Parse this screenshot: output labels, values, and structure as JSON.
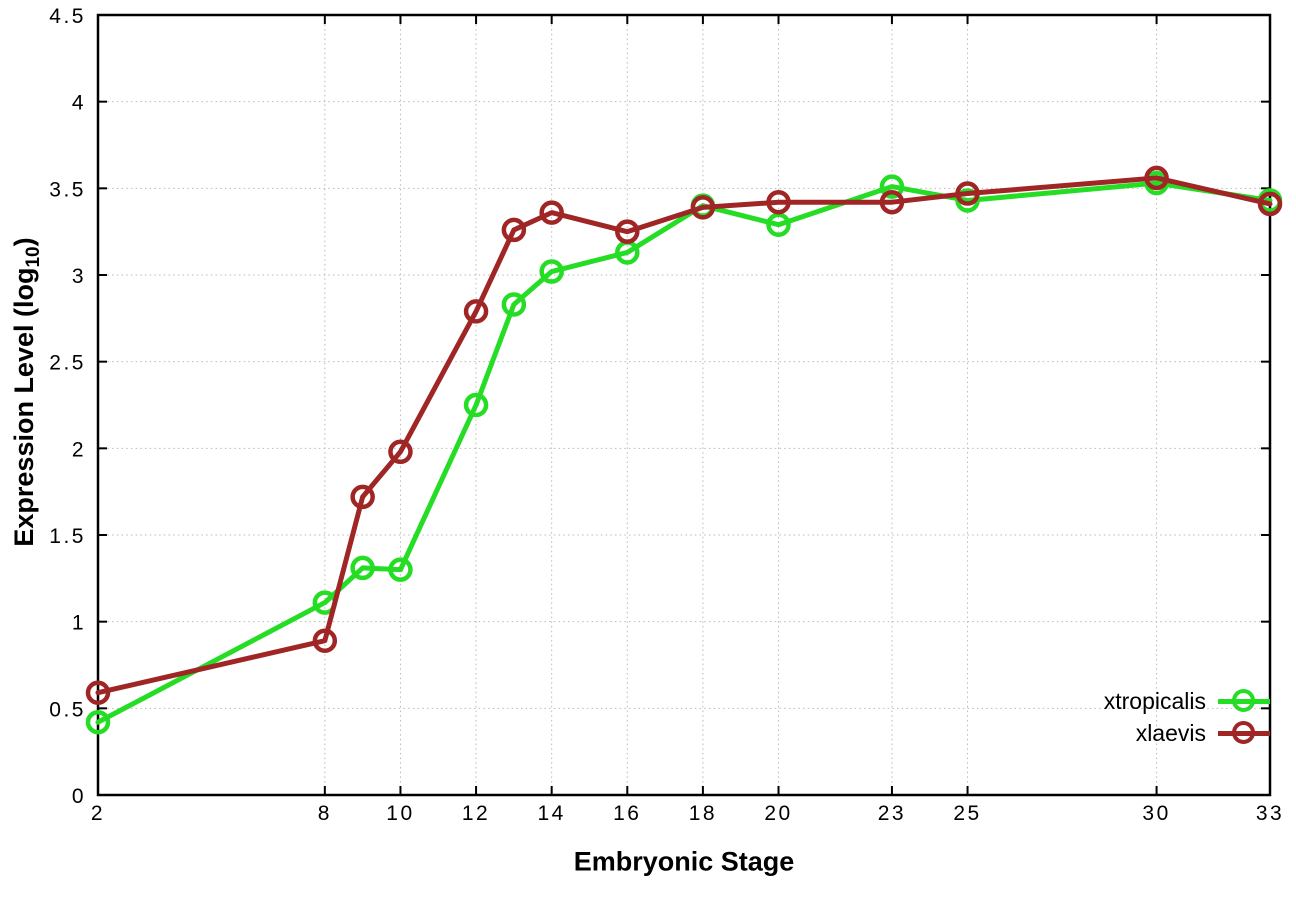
{
  "chart_data": {
    "type": "line",
    "title": "",
    "xlabel": "Embryonic Stage",
    "ylabel_main": "Expression Level (log",
    "ylabel_sub": "10",
    "ylabel_close": ")",
    "x": [
      2,
      8,
      9,
      10,
      12,
      13,
      14,
      16,
      18,
      20,
      23,
      25,
      30,
      33
    ],
    "series": [
      {
        "name": "xtropicalis",
        "color": "#26dd26",
        "values": [
          0.42,
          1.11,
          1.31,
          1.3,
          2.25,
          2.83,
          3.02,
          3.13,
          3.4,
          3.29,
          3.51,
          3.43,
          3.53,
          3.43
        ]
      },
      {
        "name": "xlaevis",
        "color": "#a02626",
        "values": [
          0.59,
          0.89,
          1.72,
          1.98,
          2.79,
          3.26,
          3.36,
          3.25,
          3.39,
          3.42,
          3.42,
          3.47,
          3.56,
          3.41
        ]
      }
    ],
    "xlim": [
      2,
      33
    ],
    "ylim": [
      0,
      4.5
    ],
    "x_ticks": [
      2,
      8,
      10,
      12,
      14,
      16,
      18,
      20,
      23,
      25,
      30,
      33
    ],
    "x_tick_labels": [
      "2",
      "8",
      "10",
      "12",
      "14",
      "16",
      "18",
      "20",
      "23",
      "25",
      "30",
      "33"
    ],
    "y_ticks": [
      0,
      0.5,
      1,
      1.5,
      2,
      2.5,
      3,
      3.5,
      4,
      4.5
    ],
    "y_tick_labels": [
      "0",
      "0.5",
      "1",
      "1.5",
      "2",
      "2.5",
      "3",
      "3.5",
      "4",
      "4.5"
    ],
    "grid": true,
    "legend_position": "inside-bottom-right",
    "marker": "open-circle",
    "background_color": "#ffffff",
    "axis_color": "#000000",
    "grid_color": "#b9b9b9"
  }
}
